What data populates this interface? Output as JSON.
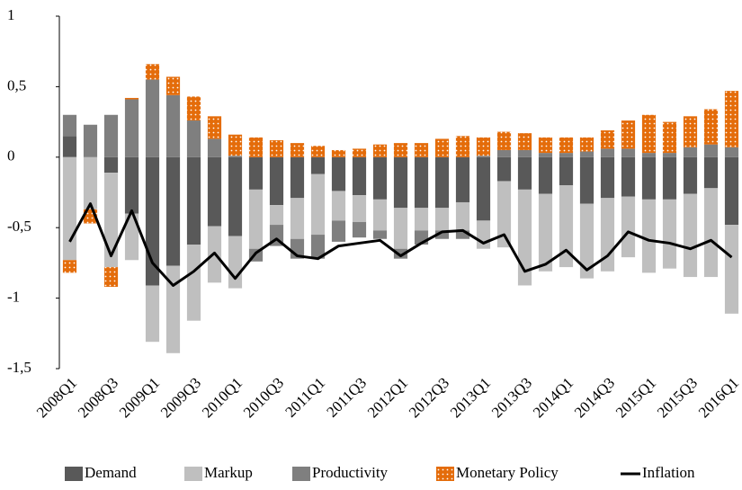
{
  "chart_data": {
    "type": "bar",
    "stacked": true,
    "categories": [
      "2008Q1",
      null,
      "2008Q3",
      null,
      "2009Q1",
      null,
      "2009Q3",
      null,
      "2010Q1",
      null,
      "2010Q3",
      null,
      "2011Q1",
      null,
      "2011Q3",
      null,
      "2012Q1",
      null,
      "2012Q3",
      null,
      "2013Q1",
      null,
      "2013Q3",
      null,
      "2014Q1",
      null,
      "2014Q3",
      null,
      "2015Q1",
      null,
      "2015Q3",
      null,
      "2016Q1"
    ],
    "ylim": [
      -1.5,
      1
    ],
    "yticks": [
      1,
      {
        "value": 0.5,
        "label": "0,5"
      },
      0,
      {
        "value": -0.5,
        "label": "-0,5"
      },
      -1,
      {
        "value": -1.5,
        "label": "-1,5"
      }
    ],
    "grid": false,
    "legend": "bottom",
    "series": [
      {
        "name": "Demand",
        "type": "bar",
        "color": "#595959",
        "values": [
          0.15,
          0,
          -0.11,
          -0.4,
          -0.91,
          -0.77,
          -0.62,
          -0.49,
          -0.56,
          -0.23,
          -0.34,
          -0.29,
          -0.12,
          -0.24,
          -0.27,
          -0.3,
          -0.36,
          -0.36,
          -0.36,
          -0.32,
          -0.45,
          -0.17,
          -0.23,
          -0.26,
          -0.2,
          -0.33,
          -0.29,
          -0.28,
          -0.3,
          -0.3,
          -0.26,
          -0.22,
          -0.48
        ]
      },
      {
        "name": "Markup",
        "type": "bar",
        "color": "#bfbfbf",
        "values": [
          -0.73,
          -0.37,
          -0.67,
          -0.33,
          -0.4,
          -0.62,
          -0.54,
          -0.4,
          -0.37,
          -0.42,
          -0.14,
          -0.29,
          -0.43,
          -0.21,
          -0.19,
          -0.22,
          -0.29,
          -0.16,
          -0.16,
          -0.2,
          -0.2,
          -0.47,
          -0.68,
          -0.55,
          -0.58,
          -0.53,
          -0.52,
          -0.43,
          -0.52,
          -0.49,
          -0.59,
          -0.63,
          -0.63
        ]
      },
      {
        "name": "Productivity",
        "type": "bar",
        "color": "#7f7f7f",
        "values": [
          0.15,
          0.23,
          0.3,
          0.41,
          0.55,
          0.44,
          0.26,
          0.13,
          0.01,
          -0.09,
          -0.15,
          -0.14,
          -0.17,
          -0.15,
          -0.11,
          -0.06,
          -0.07,
          -0.1,
          -0.06,
          -0.06,
          0.01,
          0.05,
          0.05,
          0.03,
          0.03,
          0.04,
          0.06,
          0.06,
          0.03,
          0.03,
          0.07,
          0.09,
          0.07
        ]
      },
      {
        "name": "Monetary Policy",
        "type": "bar",
        "color": "#e46c0a",
        "pattern": "dots",
        "values": [
          -0.09,
          -0.1,
          -0.14,
          0.01,
          0.11,
          0.13,
          0.17,
          0.16,
          0.15,
          0.14,
          0.12,
          0.1,
          0.08,
          0.05,
          0.06,
          0.09,
          0.1,
          0.1,
          0.13,
          0.15,
          0.13,
          0.13,
          0.12,
          0.11,
          0.11,
          0.1,
          0.13,
          0.2,
          0.27,
          0.22,
          0.22,
          0.25,
          0.4
        ]
      },
      {
        "name": "Inflation",
        "type": "line",
        "color": "#000000",
        "values": [
          -0.6,
          -0.33,
          -0.7,
          -0.38,
          -0.75,
          -0.91,
          -0.81,
          -0.68,
          -0.86,
          -0.68,
          -0.58,
          -0.7,
          -0.72,
          -0.63,
          -0.61,
          -0.59,
          -0.7,
          -0.61,
          -0.53,
          -0.52,
          -0.61,
          -0.55,
          -0.81,
          -0.76,
          -0.66,
          -0.8,
          -0.7,
          -0.53,
          -0.59,
          -0.61,
          -0.65,
          -0.59,
          -0.71
        ]
      }
    ]
  }
}
